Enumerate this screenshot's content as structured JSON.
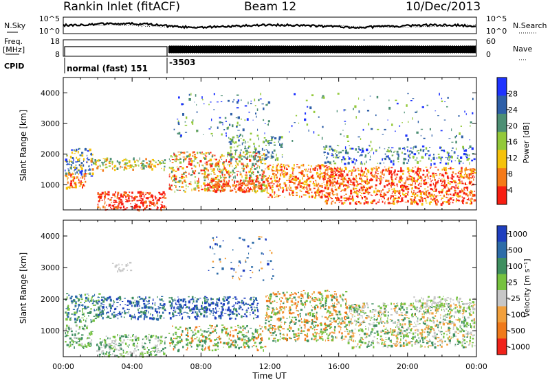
{
  "header": {
    "station": "Rankin Inlet (fitACF)",
    "beam": "Beam 12",
    "date": "10/Dec/2013"
  },
  "top_panels": {
    "nsky": {
      "label": "N.Sky",
      "ticks": [
        "10^5",
        "10^0"
      ],
      "right_ticks": [
        "10^5",
        "10^0"
      ],
      "right_label": "N.Search"
    },
    "freq": {
      "label_line1": "Freq.",
      "label_line2": "[MHz]",
      "ticks": [
        "18",
        "8"
      ],
      "right_ticks": [
        "60",
        "0"
      ],
      "right_label": "Nave"
    },
    "cpid": {
      "label": "CPID",
      "segments": [
        "normal (fast) 151",
        "-3503"
      ]
    }
  },
  "chart_data": [
    {
      "type": "heatmap",
      "title": "",
      "ylabel": "Slant Range [km]",
      "xlabel": "",
      "xlim": [
        "00:00",
        "24:00"
      ],
      "ylim": [
        180,
        4500
      ],
      "yticks": [
        "1000",
        "2000",
        "3000",
        "4000"
      ],
      "colorbar": {
        "label": "Power [dB]",
        "ticks": [
          "28",
          "24",
          "20",
          "16",
          "12",
          "8",
          "4"
        ]
      },
      "colors": [
        "#1e33ff",
        "#2e5fa8",
        "#4d8f74",
        "#93c93a",
        "#f5c20b",
        "#f57a18",
        "#f81e12"
      ]
    },
    {
      "type": "heatmap",
      "title": "",
      "ylabel": "Slant Range [km]",
      "xlabel": "Time UT",
      "xlim": [
        "00:00",
        "24:00"
      ],
      "ylim": [
        180,
        4500
      ],
      "yticks": [
        "1000",
        "2000",
        "3000",
        "4000"
      ],
      "xticks": [
        "00:00",
        "04:00",
        "08:00",
        "12:00",
        "16:00",
        "20:00",
        "00:00"
      ],
      "colorbar": {
        "label": "Velocity [m s⁻¹]",
        "ticks": [
          "1000",
          "500",
          "100",
          "25",
          "-25",
          "-100",
          "-500",
          "-1000"
        ]
      },
      "colors": [
        "#1f3fbf",
        "#2d6ca8",
        "#3f8f60",
        "#76c23f",
        "#c7c7c7",
        "#f2a03c",
        "#f07a1b",
        "#f0221a"
      ]
    }
  ]
}
